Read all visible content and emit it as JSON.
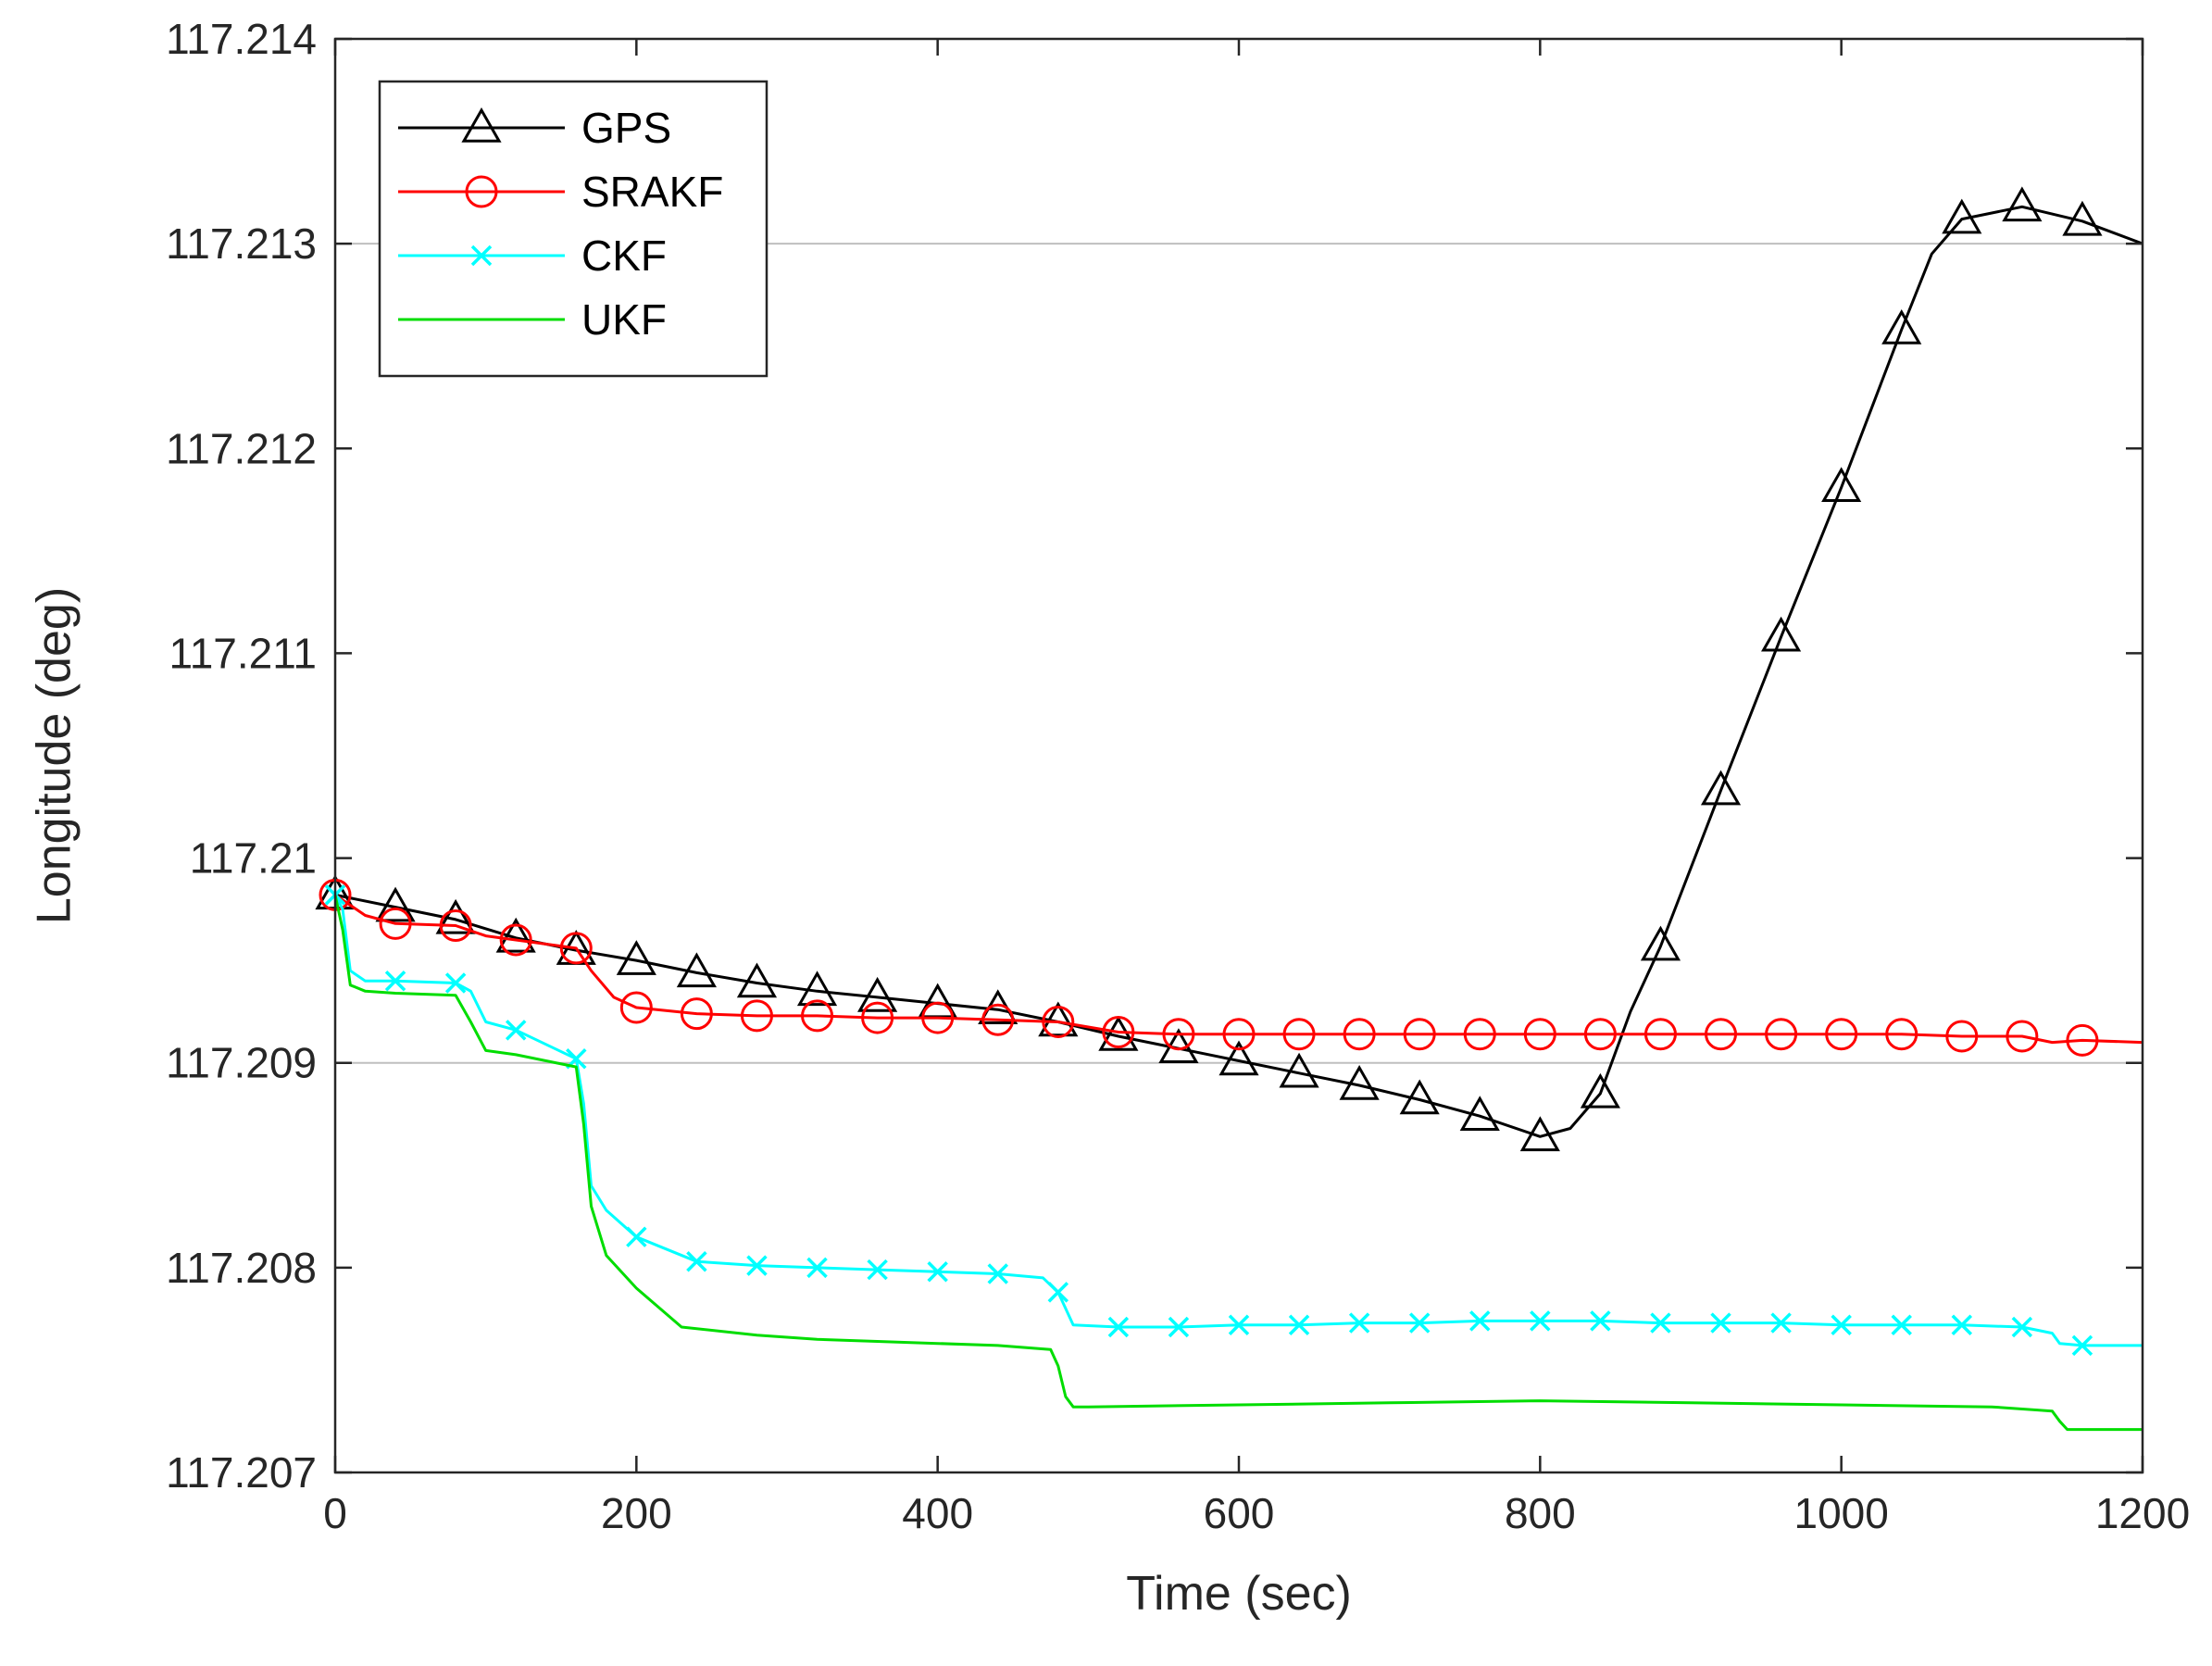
{
  "chart_data": {
    "type": "line",
    "xlabel": "Time (sec)",
    "ylabel": "Longitude (deg)",
    "xlim": [
      0,
      1200
    ],
    "ylim": [
      117.207,
      117.214
    ],
    "xticks": [
      0,
      200,
      400,
      600,
      800,
      1000,
      1200
    ],
    "yticks": [
      117.207,
      117.208,
      117.209,
      117.21,
      117.211,
      117.212,
      117.213,
      117.214
    ],
    "xtick_labels": [
      "0",
      "200",
      "400",
      "600",
      "800",
      "1000",
      "1200"
    ],
    "ytick_labels": [
      "117.207",
      "117.208",
      "117.209",
      "117.21",
      "117.211",
      "117.212",
      "117.213",
      "117.214"
    ],
    "reference_lines": [
      117.209,
      117.213
    ],
    "legend_position": "top-left",
    "series": [
      {
        "name": "GPS",
        "color": "#000000",
        "marker": "triangle",
        "x": [
          0,
          40,
          80,
          120,
          160,
          200,
          240,
          280,
          320,
          360,
          400,
          440,
          480,
          520,
          560,
          600,
          640,
          680,
          720,
          760,
          800,
          820,
          840,
          860,
          880,
          920,
          960,
          1000,
          1040,
          1060,
          1080,
          1120,
          1160,
          1200
        ],
        "y": [
          117.20982,
          117.20976,
          117.2097,
          117.20961,
          117.20955,
          117.2095,
          117.20944,
          117.20939,
          117.20935,
          117.20932,
          117.20929,
          117.20926,
          117.2092,
          117.20913,
          117.20907,
          117.20901,
          117.20895,
          117.20889,
          117.20882,
          117.20874,
          117.20864,
          117.20868,
          117.20885,
          117.20925,
          117.20957,
          117.21033,
          117.21108,
          117.21181,
          117.21258,
          117.21295,
          117.21312,
          117.21318,
          117.21311,
          117.213
        ],
        "marker_x": [
          0,
          40,
          80,
          120,
          160,
          200,
          240,
          280,
          320,
          360,
          400,
          440,
          480,
          520,
          560,
          600,
          640,
          680,
          720,
          760,
          800,
          840,
          880,
          920,
          960,
          1000,
          1040,
          1080,
          1120,
          1160
        ]
      },
      {
        "name": "SRAKF",
        "color": "#ff0000",
        "marker": "circle",
        "x": [
          0,
          20,
          40,
          80,
          100,
          120,
          160,
          170,
          185,
          200,
          240,
          280,
          320,
          360,
          400,
          440,
          480,
          520,
          560,
          600,
          640,
          680,
          720,
          760,
          800,
          840,
          880,
          920,
          960,
          1000,
          1040,
          1080,
          1120,
          1140,
          1160,
          1200
        ],
        "y": [
          117.20982,
          117.20972,
          117.20968,
          117.20967,
          117.20962,
          117.2096,
          117.20956,
          117.20945,
          117.20932,
          117.20927,
          117.20924,
          117.20923,
          117.20923,
          117.20922,
          117.20922,
          117.20921,
          117.2092,
          117.20915,
          117.20914,
          117.20914,
          117.20914,
          117.20914,
          117.20914,
          117.20914,
          117.20914,
          117.20914,
          117.20914,
          117.20914,
          117.20914,
          117.20914,
          117.20914,
          117.20913,
          117.20913,
          117.2091,
          117.20911,
          117.2091
        ],
        "marker_x": [
          0,
          40,
          80,
          120,
          160,
          200,
          240,
          280,
          320,
          360,
          400,
          440,
          480,
          520,
          560,
          600,
          640,
          680,
          720,
          760,
          800,
          840,
          880,
          920,
          960,
          1000,
          1040,
          1080,
          1120,
          1160
        ]
      },
      {
        "name": "CKF",
        "color": "#00ffff",
        "marker": "x",
        "x": [
          0,
          5,
          10,
          20,
          40,
          80,
          90,
          100,
          120,
          160,
          165,
          170,
          180,
          200,
          240,
          280,
          320,
          360,
          400,
          440,
          470,
          480,
          490,
          520,
          560,
          600,
          640,
          680,
          720,
          760,
          800,
          840,
          880,
          920,
          960,
          1000,
          1040,
          1080,
          1120,
          1140,
          1145,
          1160,
          1200
        ],
        "y": [
          117.20982,
          117.20975,
          117.20945,
          117.2094,
          117.2094,
          117.20939,
          117.20935,
          117.2092,
          117.20916,
          117.20902,
          117.2088,
          117.2084,
          117.20828,
          117.20815,
          117.20803,
          117.20801,
          117.208,
          117.20799,
          117.20798,
          117.20797,
          117.20795,
          117.20788,
          117.20772,
          117.20771,
          117.20771,
          117.20772,
          117.20772,
          117.20773,
          117.20773,
          117.20774,
          117.20774,
          117.20774,
          117.20773,
          117.20773,
          117.20773,
          117.20772,
          117.20772,
          117.20772,
          117.20771,
          117.20768,
          117.20763,
          117.20762,
          117.20762
        ],
        "marker_x": [
          0,
          40,
          80,
          120,
          160,
          200,
          240,
          280,
          320,
          360,
          400,
          440,
          480,
          520,
          560,
          600,
          640,
          680,
          720,
          760,
          800,
          840,
          880,
          920,
          960,
          1000,
          1040,
          1080,
          1120,
          1160
        ]
      },
      {
        "name": "UKF",
        "color": "#00dd00",
        "marker": "none",
        "x": [
          0,
          5,
          10,
          20,
          40,
          80,
          90,
          100,
          120,
          160,
          165,
          170,
          180,
          200,
          230,
          280,
          320,
          360,
          400,
          440,
          475,
          480,
          485,
          490,
          500,
          600,
          700,
          800,
          900,
          1000,
          1100,
          1140,
          1145,
          1150,
          1200
        ],
        "y": [
          117.20982,
          117.20965,
          117.20938,
          117.20935,
          117.20934,
          117.20933,
          117.2092,
          117.20906,
          117.20904,
          117.20898,
          117.2087,
          117.2083,
          117.20806,
          117.2079,
          117.20771,
          117.20767,
          117.20765,
          117.20764,
          117.20763,
          117.20762,
          117.2076,
          117.20752,
          117.20737,
          117.20732,
          117.20732,
          117.20733,
          117.20734,
          117.20735,
          117.20734,
          117.20733,
          117.20732,
          117.2073,
          117.20725,
          117.20721,
          117.20721
        ]
      }
    ]
  }
}
